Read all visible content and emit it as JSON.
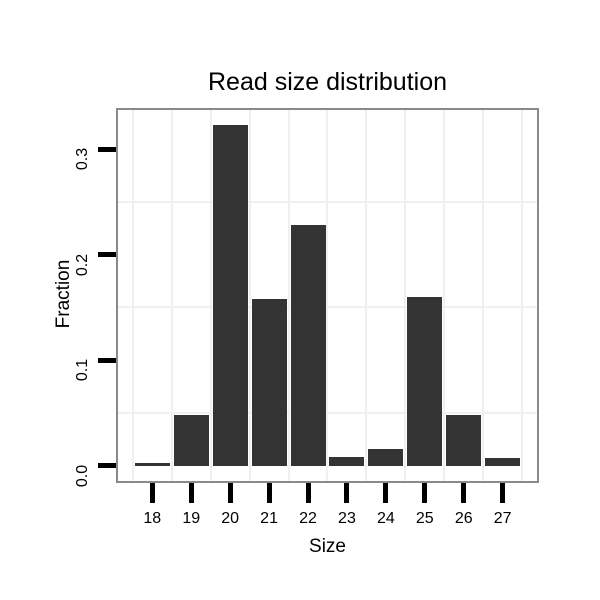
{
  "chart_data": {
    "type": "bar",
    "title": "Read size distribution",
    "xlabel": "Size",
    "ylabel": "Fraction",
    "categories": [
      "18",
      "19",
      "20",
      "21",
      "22",
      "23",
      "24",
      "25",
      "26",
      "27"
    ],
    "values": [
      0.003,
      0.048,
      0.323,
      0.158,
      0.228,
      0.009,
      0.016,
      0.16,
      0.048,
      0.008
    ],
    "yticks": [
      0.0,
      0.1,
      0.2,
      0.3
    ],
    "ytick_labels": [
      "0.0",
      "0.1",
      "0.2",
      "0.3"
    ],
    "ylim": [
      0,
      0.337
    ],
    "grid": "faint minor gridlines only (horizontal at 0.05/0.15/0.25, vertical at category boundaries)",
    "legend": "none"
  },
  "colors": {
    "bar": "#333333",
    "panel_border": "#8a8a8a",
    "gridline": "#f0f0f0",
    "tick": "#000000",
    "text": "#000000",
    "background": "#ffffff"
  }
}
